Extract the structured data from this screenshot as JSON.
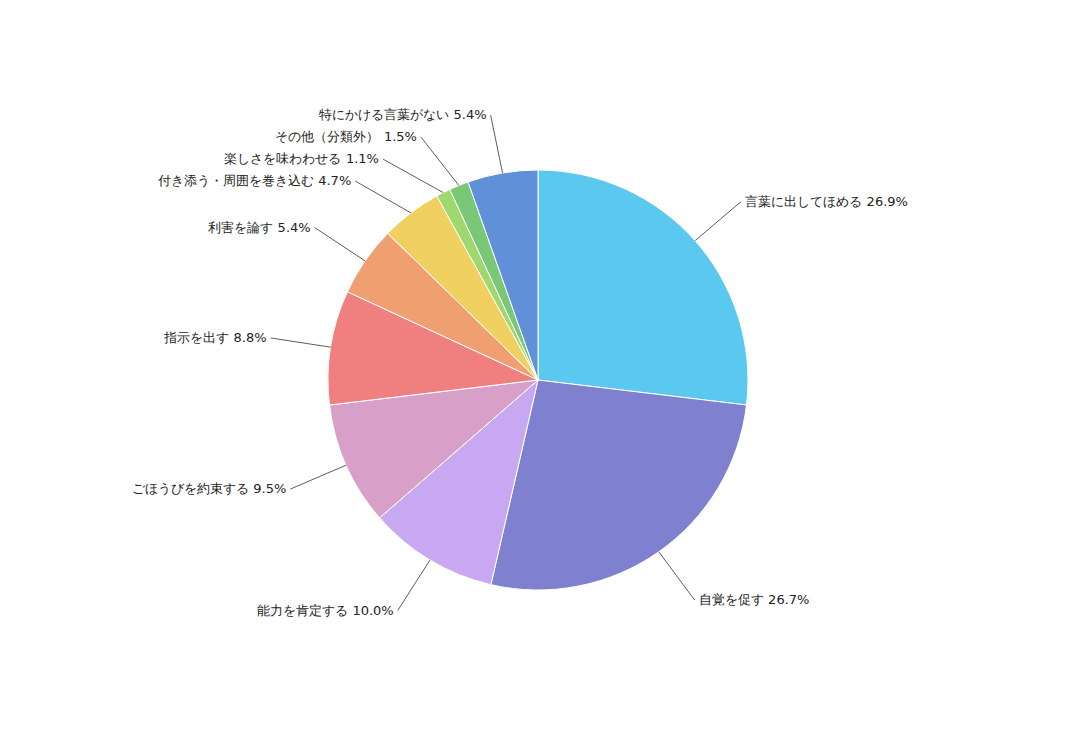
{
  "chart_data": {
    "type": "pie",
    "categories": [
      "言葉に出してほめる",
      "自覚を促す",
      "能力を肯定する",
      "ごほうびを約束する",
      "指示を出す",
      "利害を論す",
      "付き添う・周囲を巻き込む",
      "楽しさを味わわせる",
      "その他（分類外）",
      "特にかける言葉がない"
    ],
    "values": [
      26.9,
      26.7,
      10.0,
      9.5,
      8.8,
      5.4,
      4.7,
      1.1,
      1.5,
      5.4
    ],
    "value_labels": [
      "26.9%",
      "26.7%",
      "10.0%",
      "9.5%",
      "8.8%",
      "5.4%",
      "4.7%",
      "1.1%",
      "1.5%",
      "5.4%"
    ],
    "colors": [
      "#5BC8F0",
      "#8080D0",
      "#C8A8F0",
      "#D8A0C8",
      "#F08080",
      "#F0A070",
      "#F0D060",
      "#A0D870",
      "#78C878",
      "#6090D8"
    ],
    "data_labels": true
  }
}
